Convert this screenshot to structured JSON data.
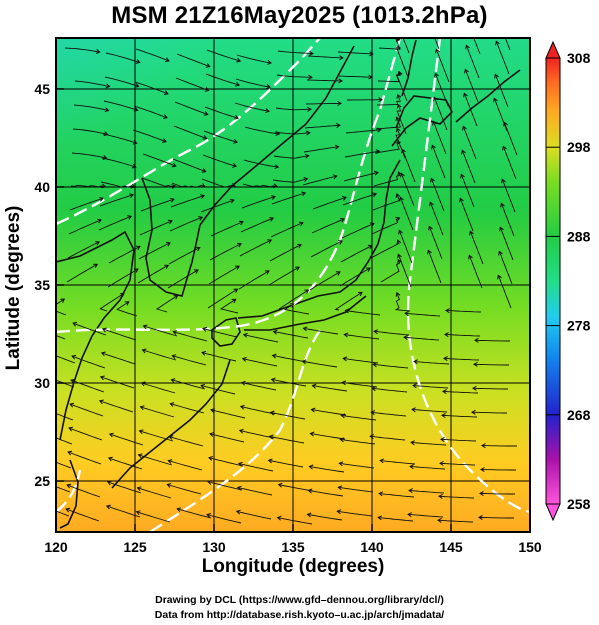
{
  "title": "MSM 21Z16May2025 (1013.2hPa)",
  "x_axis": {
    "label": "Longitude (degrees)",
    "ticks": [
      "120",
      "125",
      "130",
      "135",
      "140",
      "145",
      "150"
    ],
    "range": [
      120,
      150
    ]
  },
  "y_axis": {
    "label": "Latitude  (degrees)",
    "ticks": [
      "25",
      "30",
      "35",
      "40",
      "45"
    ],
    "range": [
      22.4,
      47.6
    ]
  },
  "colorbar": {
    "ticks": [
      "258",
      "268",
      "278",
      "288",
      "298",
      "308"
    ],
    "min": 258,
    "max": 308,
    "colors": [
      "#ff55dd",
      "#aa11aa",
      "#2222cc",
      "#1188ee",
      "#22ccee",
      "#22dd88",
      "#22cc44",
      "#77dd22",
      "#dddd22",
      "#ffaa22",
      "#ff6622",
      "#ee2222"
    ]
  },
  "chart_data": {
    "type": "heatmap",
    "description_fields": "temperature field with streamlines",
    "field_range": [
      258,
      308
    ],
    "x_range": [
      120,
      150
    ],
    "y_range": [
      22.4,
      47.6
    ]
  },
  "credits": {
    "line1": "Drawing by DCL (https://www.gfd–dennou.org/library/dcl/)",
    "line2": "Data from http://database.rish.kyoto–u.ac.jp/arch/jmadata/"
  }
}
